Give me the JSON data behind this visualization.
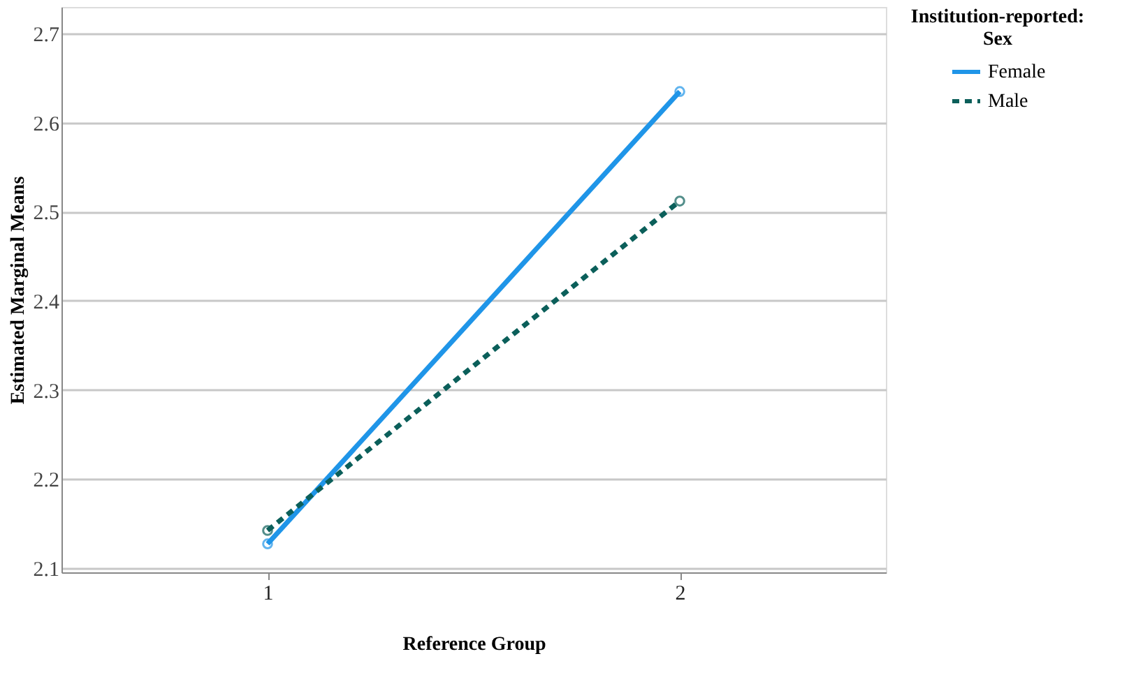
{
  "chart_data": {
    "type": "line",
    "xlabel": "Reference Group",
    "ylabel": "Estimated Marginal Means",
    "legend_title": "Institution-reported: Sex",
    "categories": [
      "1",
      "2"
    ],
    "series": [
      {
        "name": "Female",
        "color": "#1f95e8",
        "values": [
          2.127,
          2.635
        ],
        "line_style": "solid"
      },
      {
        "name": "Male",
        "color": "#0b5f5a",
        "values": [
          2.142,
          2.512
        ],
        "line_style": "dashed"
      }
    ],
    "ylim": [
      2.095,
      2.73
    ],
    "yticks": [
      2.1,
      2.2,
      2.3,
      2.4,
      2.5,
      2.6,
      2.7
    ],
    "grid": "y",
    "legend": "top right",
    "marker": "circle"
  }
}
